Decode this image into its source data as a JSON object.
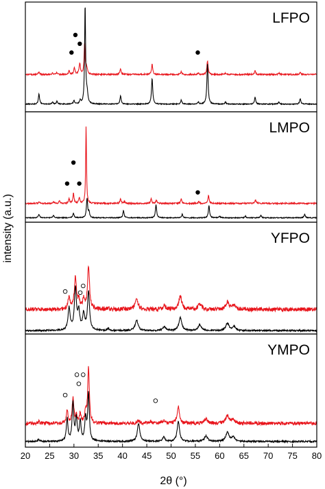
{
  "chart_data": {
    "type": "line",
    "xlabel": "2θ (°)",
    "ylabel": "intensity (a.u.)",
    "xlim": [
      20,
      80
    ],
    "x_ticks": [
      20,
      25,
      30,
      35,
      40,
      45,
      50,
      55,
      60,
      65,
      70,
      75,
      80
    ],
    "y_ticks": "none",
    "grid": false,
    "legend": "none",
    "colors": {
      "upper_trace": "#e8141b",
      "lower_trace": "#000000"
    },
    "panels": [
      {
        "label": "LFPO",
        "markers": {
          "filled": [
            [
              29.5,
              0.46
            ],
            [
              30.3,
              0.3
            ],
            [
              31.2,
              0.38
            ],
            [
              55.5,
              0.46
            ]
          ],
          "open": []
        },
        "series": [
          {
            "color": "#e8141b",
            "baseline": 0.66,
            "amplitude": 0.62,
            "noise": 0.006,
            "peaks": [
              [
                22.8,
                0.04,
                0.15
              ],
              [
                25.6,
                0.02,
                0.15
              ],
              [
                26.5,
                0.03,
                0.15
              ],
              [
                29.0,
                0.05,
                0.15
              ],
              [
                30.1,
                0.1,
                0.15
              ],
              [
                31.2,
                0.15,
                0.18
              ],
              [
                32.2,
                0.45,
                0.12
              ],
              [
                32.6,
                0.1,
                0.2
              ],
              [
                39.6,
                0.08,
                0.15
              ],
              [
                46.1,
                0.15,
                0.15
              ],
              [
                52.1,
                0.04,
                0.15
              ],
              [
                55.6,
                0.02,
                0.15
              ],
              [
                57.5,
                0.2,
                0.15
              ],
              [
                61.2,
                0.02,
                0.15
              ],
              [
                67.3,
                0.05,
                0.15
              ],
              [
                72.2,
                0.02,
                0.15
              ],
              [
                76.6,
                0.03,
                0.15
              ]
            ]
          },
          {
            "color": "#000000",
            "baseline": 0.93,
            "amplitude": 0.62,
            "noise": 0.004,
            "peaks": [
              [
                22.8,
                0.15,
                0.15
              ],
              [
                25.6,
                0.03,
                0.15
              ],
              [
                26.5,
                0.04,
                0.15
              ],
              [
                30.0,
                0.05,
                0.15
              ],
              [
                31.3,
                0.05,
                0.15
              ],
              [
                32.3,
                1.45,
                0.12
              ],
              [
                32.7,
                0.15,
                0.2
              ],
              [
                39.6,
                0.12,
                0.15
              ],
              [
                46.1,
                0.38,
                0.15
              ],
              [
                52.1,
                0.06,
                0.15
              ],
              [
                55.6,
                0.03,
                0.15
              ],
              [
                57.5,
                0.6,
                0.15
              ],
              [
                61.2,
                0.03,
                0.15
              ],
              [
                67.3,
                0.1,
                0.15
              ],
              [
                72.2,
                0.03,
                0.15
              ],
              [
                76.6,
                0.08,
                0.15
              ]
            ]
          }
        ]
      },
      {
        "label": "LMPO",
        "markers": {
          "filled": [
            [
              28.6,
              0.65
            ],
            [
              29.9,
              0.46
            ],
            [
              31.1,
              0.65
            ],
            [
              55.5,
              0.73
            ]
          ],
          "open": []
        },
        "series": [
          {
            "color": "#e8141b",
            "baseline": 0.83,
            "amplitude": 0.8,
            "noise": 0.006,
            "peaks": [
              [
                22.8,
                0.02,
                0.15
              ],
              [
                25.8,
                0.02,
                0.15
              ],
              [
                27.0,
                0.03,
                0.15
              ],
              [
                29.0,
                0.05,
                0.15
              ],
              [
                29.9,
                0.11,
                0.15
              ],
              [
                31.1,
                0.06,
                0.15
              ],
              [
                32.5,
                0.88,
                0.1
              ],
              [
                39.6,
                0.05,
                0.15
              ],
              [
                40.4,
                0.02,
                0.15
              ],
              [
                45.9,
                0.05,
                0.15
              ],
              [
                47.0,
                0.04,
                0.15
              ],
              [
                52.1,
                0.05,
                0.15
              ],
              [
                55.7,
                0.02,
                0.15
              ],
              [
                57.7,
                0.09,
                0.15
              ],
              [
                67.4,
                0.04,
                0.15
              ]
            ]
          },
          {
            "color": "#000000",
            "baseline": 0.96,
            "amplitude": 0.8,
            "noise": 0.004,
            "peaks": [
              [
                22.8,
                0.04,
                0.15
              ],
              [
                25.8,
                0.03,
                0.15
              ],
              [
                29.9,
                0.05,
                0.15
              ],
              [
                32.7,
                0.22,
                0.15
              ],
              [
                33.1,
                0.06,
                0.15
              ],
              [
                40.2,
                0.08,
                0.15
              ],
              [
                46.9,
                0.15,
                0.15
              ],
              [
                52.3,
                0.04,
                0.15
              ],
              [
                57.8,
                0.14,
                0.15
              ],
              [
                60.0,
                0.02,
                0.15
              ],
              [
                65.3,
                0.02,
                0.15
              ],
              [
                68.5,
                0.03,
                0.15
              ],
              [
                77.5,
                0.04,
                0.15
              ]
            ]
          }
        ]
      },
      {
        "label": "YFPO",
        "markers": {
          "filled": [],
          "open": [
            [
              28.2,
              0.62
            ],
            [
              31.3,
              0.63
            ],
            [
              31.9,
              0.57
            ]
          ]
        },
        "series": [
          {
            "color": "#e8141b",
            "baseline": 0.78,
            "amplitude": 0.72,
            "noise": 0.018,
            "peaks": [
              [
                29.0,
                0.15,
                0.25
              ],
              [
                30.3,
                0.4,
                0.25
              ],
              [
                31.0,
                0.1,
                0.25
              ],
              [
                32.0,
                0.12,
                0.25
              ],
              [
                33.0,
                0.52,
                0.25
              ],
              [
                37.1,
                0.02,
                0.3
              ],
              [
                42.9,
                0.13,
                0.35
              ],
              [
                48.6,
                0.04,
                0.35
              ],
              [
                51.9,
                0.16,
                0.35
              ],
              [
                55.9,
                0.07,
                0.4
              ],
              [
                61.6,
                0.09,
                0.4
              ],
              [
                63.0,
                0.05,
                0.4
              ]
            ]
          },
          {
            "color": "#000000",
            "baseline": 0.97,
            "amplitude": 0.72,
            "noise": 0.007,
            "peaks": [
              [
                29.0,
                0.28,
                0.25
              ],
              [
                30.3,
                0.52,
                0.25
              ],
              [
                31.0,
                0.22,
                0.25
              ],
              [
                32.0,
                0.2,
                0.25
              ],
              [
                33.0,
                0.48,
                0.25
              ],
              [
                37.1,
                0.02,
                0.3
              ],
              [
                42.9,
                0.13,
                0.35
              ],
              [
                48.6,
                0.05,
                0.35
              ],
              [
                51.9,
                0.16,
                0.35
              ],
              [
                55.9,
                0.07,
                0.4
              ],
              [
                61.6,
                0.09,
                0.4
              ],
              [
                63.0,
                0.05,
                0.4
              ]
            ]
          }
        ]
      },
      {
        "label": "YMPO",
        "markers": {
          "filled": [],
          "open": [
            [
              28.2,
              0.54
            ],
            [
              30.6,
              0.36
            ],
            [
              31.0,
              0.44
            ],
            [
              31.9,
              0.36
            ],
            [
              46.8,
              0.59
            ]
          ]
        },
        "series": [
          {
            "color": "#e8141b",
            "baseline": 0.79,
            "amplitude": 0.8,
            "noise": 0.015,
            "peaks": [
              [
                22.7,
                0.02,
                0.2
              ],
              [
                28.6,
                0.14,
                0.2
              ],
              [
                29.8,
                0.28,
                0.2
              ],
              [
                30.5,
                0.08,
                0.2
              ],
              [
                31.3,
                0.1,
                0.2
              ],
              [
                32.4,
                0.12,
                0.2
              ],
              [
                33.0,
                0.62,
                0.2
              ],
              [
                43.3,
                0.03,
                0.3
              ],
              [
                45.8,
                0.02,
                0.3
              ],
              [
                48.5,
                0.03,
                0.3
              ],
              [
                51.5,
                0.18,
                0.3
              ],
              [
                57.2,
                0.05,
                0.4
              ],
              [
                61.6,
                0.09,
                0.4
              ],
              [
                62.8,
                0.04,
                0.4
              ]
            ]
          },
          {
            "color": "#000000",
            "baseline": 0.95,
            "amplitude": 0.8,
            "noise": 0.007,
            "peaks": [
              [
                22.7,
                0.02,
                0.2
              ],
              [
                28.6,
                0.25,
                0.2
              ],
              [
                29.8,
                0.42,
                0.2
              ],
              [
                30.5,
                0.25,
                0.2
              ],
              [
                31.3,
                0.22,
                0.2
              ],
              [
                32.4,
                0.25,
                0.2
              ],
              [
                33.0,
                0.52,
                0.2
              ],
              [
                43.3,
                0.2,
                0.3
              ],
              [
                48.5,
                0.05,
                0.3
              ],
              [
                51.5,
                0.22,
                0.3
              ],
              [
                57.2,
                0.06,
                0.4
              ],
              [
                61.6,
                0.1,
                0.4
              ],
              [
                62.8,
                0.05,
                0.4
              ]
            ]
          }
        ]
      }
    ]
  }
}
